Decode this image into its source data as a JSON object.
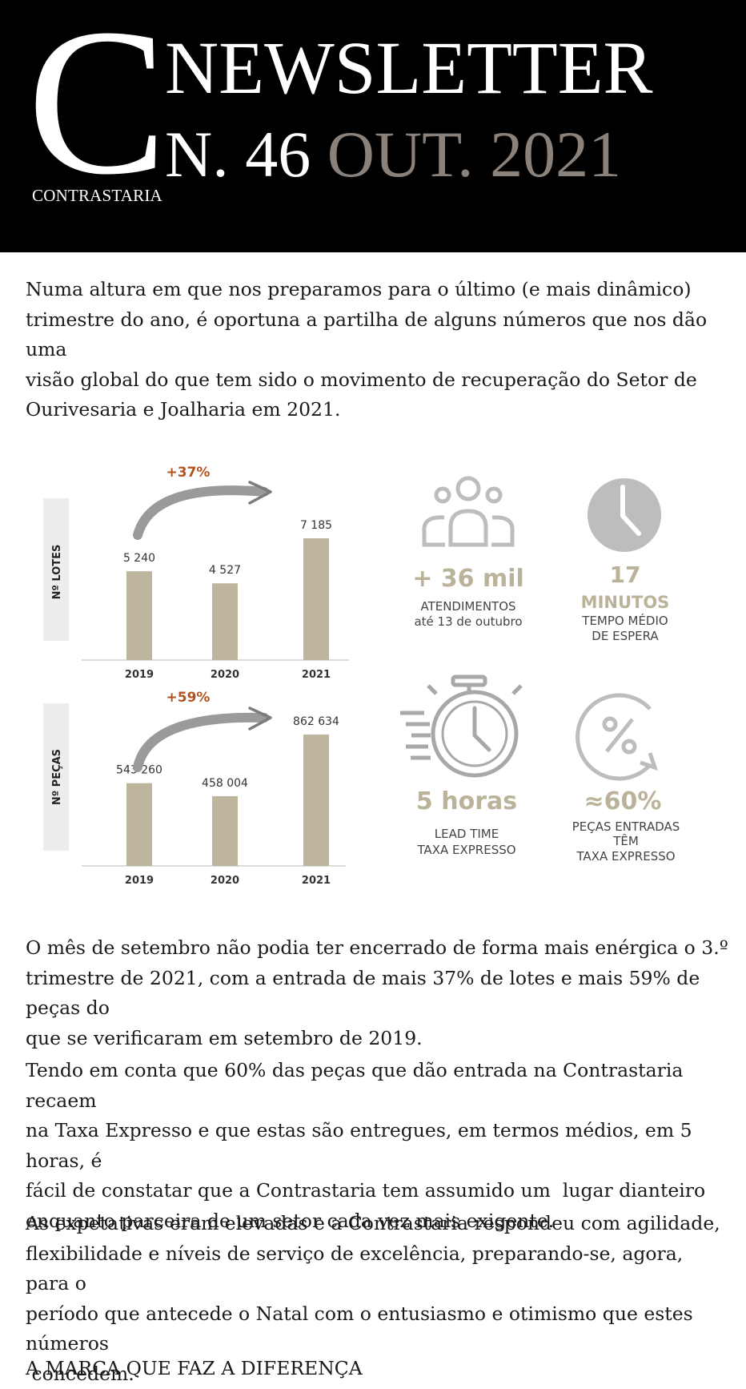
{
  "header": {
    "logo_letter": "C",
    "logo_text": "CONTRASTARIA",
    "title_line1": "NEWSLETTER",
    "issue": "N. 46",
    "period": "OUT. 2021"
  },
  "intro": "Numa altura em que nos preparamos para o último (e mais dinâmico)\ntrimestre do ano, é oportuna a partilha de alguns números que nos dão uma\nvisão global do que tem sido o movimento de recuperação do Setor de\nOurivesaria e Joalharia em 2021.",
  "chart_data": [
    {
      "type": "bar",
      "ylabel": "Nº LOTES",
      "categories": [
        "2019",
        "2020",
        "2021"
      ],
      "values": [
        5240,
        4527,
        7185
      ],
      "value_labels": [
        "5 240",
        "4 527",
        "7 185"
      ],
      "annotation": "+37%"
    },
    {
      "type": "bar",
      "ylabel": "Nº PEÇAS",
      "categories": [
        "2019",
        "2020",
        "2021"
      ],
      "values": [
        543260,
        458004,
        862634
      ],
      "value_labels": [
        "543 260",
        "458 004",
        "862 634"
      ],
      "annotation": "+59%"
    }
  ],
  "stats": {
    "attendance": {
      "big": "+ 36 mil",
      "line1": "ATENDIMENTOS",
      "line2": "até 13 de outubro",
      "icon": "people-icon"
    },
    "wait": {
      "big": "17",
      "unit": "MINUTOS",
      "line1": "TEMPO MÉDIO",
      "line2": "DE ESPERA",
      "icon": "clock-icon"
    },
    "leadtime": {
      "big": "5 horas",
      "line1": "LEAD TIME",
      "line2": "TAXA EXPRESSO",
      "icon": "stopwatch-icon"
    },
    "share": {
      "big": "≈60%",
      "line1": "PEÇAS ENTRADAS",
      "line2": "TÊM",
      "line3": "TAXA EXPRESSO",
      "icon": "percent-icon"
    }
  },
  "body": {
    "p1": "O mês de setembro não podia ter encerrado de forma mais enérgica o 3.º\ntrimestre de 2021, com a entrada de mais 37% de lotes e mais 59% de peças do\nque se verificaram em setembro de 2019.",
    "p2": "Tendo em conta que 60% das peças que dão entrada na Contrastaria recaem\nna Taxa Expresso e que estas são entregues, em termos médios, em 5 horas, é\nfácil de constatar que a Contrastaria tem assumido um  lugar dianteiro\nenquanto parceira de um setor cada vez mais exigente.",
    "p3": "As expetativas eram elevadas e a Contrastaria respondeu com agilidade,\nflexibilidade e níveis de serviço de excelência, preparando-se, agora, para o\nperíodo que antecede o Natal com o entusiasmo e otimismo que estes números\n concedem.",
    "tagline": "A MARCA QUE FAZ A DIFERENÇA"
  },
  "colors": {
    "bar": "#bdb59e",
    "arrow": "#9a9a9a",
    "growth": "#b4521f",
    "icon": "#bdbdbd",
    "stat": "#bbb29a"
  }
}
